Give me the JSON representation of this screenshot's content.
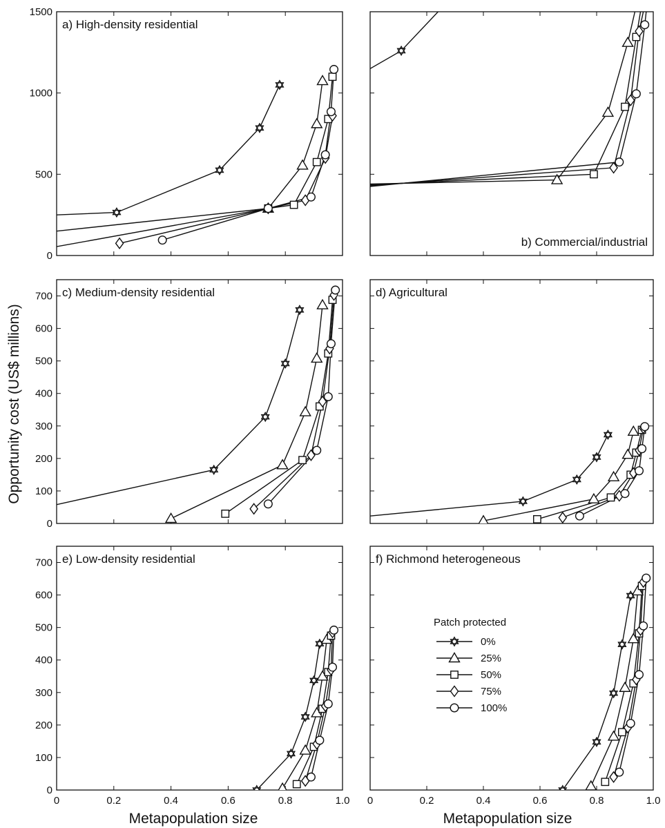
{
  "figure": {
    "ylabel": "Opportunity cost (US$ millions)",
    "xlabel_left": "Metapopulation size",
    "xlabel_right": "Metapopulation size"
  },
  "legend": {
    "title": "Patch protected",
    "entries": [
      "0%",
      "25%",
      "50%",
      "75%",
      "100%"
    ],
    "markers": [
      "star",
      "triangle",
      "square",
      "diamond",
      "circle"
    ]
  },
  "chart_data": [
    {
      "type": "line",
      "title": "a) High-density residential",
      "xlim": [
        0,
        1
      ],
      "ylim": [
        0,
        1500
      ],
      "xticks": [],
      "yticks": [
        0,
        500,
        1000,
        1500
      ],
      "series": [
        {
          "name": "0%",
          "marker": "star",
          "x": [
            0,
            0.21,
            0.57,
            0.71,
            0.78
          ],
          "y": [
            250,
            265,
            525,
            785,
            1050
          ]
        },
        {
          "name": "25%",
          "marker": "triangle",
          "x": [
            0,
            0.74,
            0.86,
            0.91,
            0.93
          ],
          "y": [
            150,
            290,
            555,
            810,
            1075
          ]
        },
        {
          "name": "50%",
          "marker": "square",
          "x": [
            0,
            0.74,
            0.83,
            0.91,
            0.95,
            0.965
          ],
          "y": [
            55,
            290,
            312,
            575,
            840,
            1100
          ]
        },
        {
          "name": "75%",
          "marker": "diamond",
          "x": [
            0.22,
            0.74,
            0.87,
            0.94,
            0.965
          ],
          "y": [
            75,
            290,
            340,
            600,
            860
          ]
        },
        {
          "name": "100%",
          "marker": "circle",
          "x": [
            0.37,
            0.74,
            0.89,
            0.94,
            0.96,
            0.97
          ],
          "y": [
            95,
            290,
            360,
            620,
            885,
            1145
          ]
        }
      ]
    },
    {
      "type": "line",
      "title": "b) Commercial/industrial",
      "xlim": [
        0,
        1
      ],
      "ylim": [
        0,
        1500
      ],
      "xticks": [],
      "yticks": [
        0,
        500,
        1000,
        1500
      ],
      "series": [
        {
          "name": "0%",
          "marker": "star",
          "x": [
            0,
            0.11,
            0.24
          ],
          "y": [
            1150,
            1260,
            1500
          ]
        },
        {
          "name": "25%",
          "marker": "triangle",
          "x": [
            0,
            0.66,
            0.84,
            0.91,
            0.935
          ],
          "y": [
            440,
            465,
            880,
            1310,
            1500
          ]
        },
        {
          "name": "50%",
          "marker": "square",
          "x": [
            0,
            0.79,
            0.9,
            0.94,
            0.955
          ],
          "y": [
            435,
            500,
            915,
            1345,
            1500
          ]
        },
        {
          "name": "75%",
          "marker": "diamond",
          "x": [
            0,
            0.86,
            0.92,
            0.95,
            0.965
          ],
          "y": [
            430,
            540,
            955,
            1380,
            1500
          ]
        },
        {
          "name": "100%",
          "marker": "circle",
          "x": [
            0,
            0.88,
            0.94,
            0.97,
            0.975
          ],
          "y": [
            425,
            575,
            995,
            1420,
            1500
          ]
        }
      ]
    },
    {
      "type": "line",
      "title": "c) Medium-density residential",
      "xlim": [
        0,
        1
      ],
      "ylim": [
        0,
        750
      ],
      "xticks": [],
      "yticks": [
        0,
        100,
        200,
        300,
        400,
        500,
        600,
        700
      ],
      "series": [
        {
          "name": "0%",
          "marker": "star",
          "x": [
            0,
            0.55,
            0.73,
            0.8,
            0.85
          ],
          "y": [
            58,
            165,
            328,
            492,
            657
          ]
        },
        {
          "name": "25%",
          "marker": "triangle",
          "x": [
            0.4,
            0.79,
            0.87,
            0.91,
            0.93
          ],
          "y": [
            15,
            180,
            343,
            508,
            672
          ]
        },
        {
          "name": "50%",
          "marker": "square",
          "x": [
            0.59,
            0.86,
            0.92,
            0.95,
            0.965
          ],
          "y": [
            30,
            195,
            360,
            523,
            688
          ]
        },
        {
          "name": "75%",
          "marker": "diamond",
          "x": [
            0.69,
            0.89,
            0.93,
            0.955,
            0.97
          ],
          "y": [
            45,
            210,
            375,
            538,
            703
          ]
        },
        {
          "name": "100%",
          "marker": "circle",
          "x": [
            0.74,
            0.91,
            0.95,
            0.96,
            0.975
          ],
          "y": [
            60,
            225,
            390,
            553,
            718
          ]
        }
      ]
    },
    {
      "type": "line",
      "title": "d) Agricultural",
      "xlim": [
        0,
        1
      ],
      "ylim": [
        0,
        750
      ],
      "xticks": [],
      "yticks": [
        0,
        100,
        200,
        300,
        400,
        500,
        600,
        700
      ],
      "series": [
        {
          "name": "0%",
          "marker": "star",
          "x": [
            0,
            0.54,
            0.73,
            0.8,
            0.84
          ],
          "y": [
            23,
            68,
            135,
            204,
            273
          ]
        },
        {
          "name": "25%",
          "marker": "triangle",
          "x": [
            0.4,
            0.79,
            0.86,
            0.91,
            0.93
          ],
          "y": [
            8,
            75,
            143,
            212,
            283
          ]
        },
        {
          "name": "50%",
          "marker": "square",
          "x": [
            0.59,
            0.85,
            0.92,
            0.94,
            0.96
          ],
          "y": [
            13,
            80,
            150,
            218,
            288
          ]
        },
        {
          "name": "75%",
          "marker": "diamond",
          "x": [
            0.68,
            0.88,
            0.93,
            0.95,
            0.965
          ],
          "y": [
            18,
            85,
            155,
            225,
            293
          ]
        },
        {
          "name": "100%",
          "marker": "circle",
          "x": [
            0.74,
            0.9,
            0.95,
            0.96,
            0.97
          ],
          "y": [
            23,
            92,
            162,
            230,
            298
          ]
        }
      ]
    },
    {
      "type": "line",
      "title": "e) Low-density residential",
      "xlim": [
        0,
        1
      ],
      "ylim": [
        0,
        750
      ],
      "xticks": [
        0,
        0.2,
        0.4,
        0.6,
        0.8,
        1.0
      ],
      "yticks": [
        0,
        100,
        200,
        300,
        400,
        500,
        600,
        700
      ],
      "series": [
        {
          "name": "0%",
          "marker": "star",
          "x": [
            0.7,
            0.82,
            0.87,
            0.9,
            0.92
          ],
          "y": [
            0,
            112,
            225,
            337,
            450
          ]
        },
        {
          "name": "25%",
          "marker": "triangle",
          "x": [
            0.79,
            0.87,
            0.91,
            0.93,
            0.945
          ],
          "y": [
            5,
            122,
            237,
            350,
            463
          ]
        },
        {
          "name": "50%",
          "marker": "square",
          "x": [
            0.84,
            0.9,
            0.93,
            0.95,
            0.96
          ],
          "y": [
            18,
            133,
            250,
            363,
            475
          ]
        },
        {
          "name": "75%",
          "marker": "diamond",
          "x": [
            0.87,
            0.91,
            0.94,
            0.96,
            0.965
          ],
          "y": [
            28,
            142,
            258,
            370,
            485
          ]
        },
        {
          "name": "100%",
          "marker": "circle",
          "x": [
            0.89,
            0.92,
            0.95,
            0.965,
            0.97
          ],
          "y": [
            40,
            153,
            265,
            378,
            492
          ]
        }
      ]
    },
    {
      "type": "line",
      "title": "f) Richmond heterogeneous",
      "xlim": [
        0,
        1
      ],
      "ylim": [
        0,
        750
      ],
      "xticks": [
        0,
        0.2,
        0.4,
        0.6,
        0.8,
        1.0
      ],
      "yticks": [
        0,
        100,
        200,
        300,
        400,
        500,
        600,
        700
      ],
      "series": [
        {
          "name": "0%",
          "marker": "star",
          "x": [
            0.68,
            0.8,
            0.86,
            0.89,
            0.92
          ],
          "y": [
            0,
            148,
            298,
            448,
            598
          ]
        },
        {
          "name": "25%",
          "marker": "triangle",
          "x": [
            0.78,
            0.86,
            0.9,
            0.93,
            0.945
          ],
          "y": [
            12,
            165,
            315,
            465,
            612
          ]
        },
        {
          "name": "50%",
          "marker": "square",
          "x": [
            0.83,
            0.89,
            0.93,
            0.95,
            0.96
          ],
          "y": [
            25,
            178,
            328,
            482,
            628
          ]
        },
        {
          "name": "75%",
          "marker": "diamond",
          "x": [
            0.86,
            0.91,
            0.94,
            0.955,
            0.965
          ],
          "y": [
            40,
            192,
            340,
            492,
            640
          ]
        },
        {
          "name": "100%",
          "marker": "circle",
          "x": [
            0.88,
            0.92,
            0.95,
            0.965,
            0.975
          ],
          "y": [
            55,
            205,
            355,
            505,
            652
          ]
        }
      ]
    }
  ]
}
